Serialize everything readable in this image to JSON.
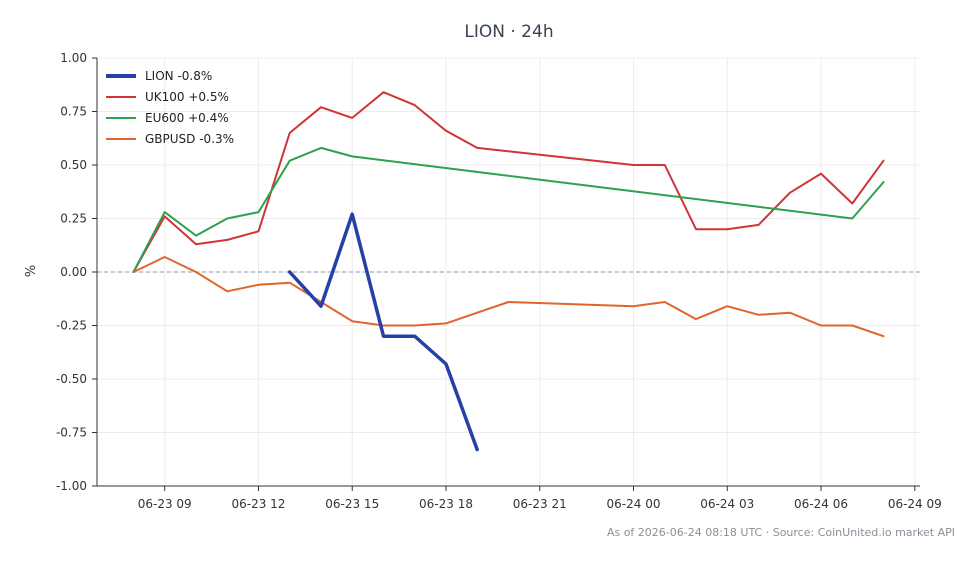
{
  "chart_data": {
    "type": "line",
    "title": "LION · 24h",
    "xlabel": "",
    "ylabel": "%",
    "ylim": [
      -1.0,
      1.0
    ],
    "xlim": [
      "2026-06-23T06:50",
      "2026-06-24T09:10"
    ],
    "yticks": [
      "1.00",
      "0.75",
      "0.50",
      "0.25",
      "0.00",
      "-0.25",
      "-0.50",
      "-0.75",
      "-1.00"
    ],
    "ytick_values": [
      1.0,
      0.75,
      0.5,
      0.25,
      0.0,
      -0.25,
      -0.5,
      -0.75,
      -1.0
    ],
    "xticks": [
      "06-23 09",
      "06-23 12",
      "06-23 15",
      "06-23 18",
      "06-23 21",
      "06-24 00",
      "06-24 03",
      "06-24 06",
      "06-24 09"
    ],
    "xtick_values": [
      "2026-06-23T09:00",
      "2026-06-23T12:00",
      "2026-06-23T15:00",
      "2026-06-23T18:00",
      "2026-06-23T21:00",
      "2026-06-24T00:00",
      "2026-06-24T03:00",
      "2026-06-24T06:00",
      "2026-06-24T09:00"
    ],
    "zero_line": true,
    "grid": true,
    "legend_position": "top-left",
    "series": [
      {
        "name": "LION -0.8%",
        "color": "#2541a8",
        "bold": true,
        "x": [
          "2026-06-23T13:00",
          "2026-06-23T14:00",
          "2026-06-23T15:00",
          "2026-06-23T16:00",
          "2026-06-23T17:00",
          "2026-06-23T18:00",
          "2026-06-23T19:00"
        ],
        "y": [
          0.0,
          -0.16,
          0.27,
          -0.3,
          -0.3,
          -0.43,
          -0.83
        ]
      },
      {
        "name": "UK100 +0.5%",
        "color": "#d03436",
        "bold": false,
        "x": [
          "2026-06-23T08:00",
          "2026-06-23T09:00",
          "2026-06-23T10:00",
          "2026-06-23T11:00",
          "2026-06-23T12:00",
          "2026-06-23T13:00",
          "2026-06-23T14:00",
          "2026-06-23T15:00",
          "2026-06-23T16:00",
          "2026-06-23T17:00",
          "2026-06-23T18:00",
          "2026-06-23T19:00",
          "2026-06-24T00:00",
          "2026-06-24T01:00",
          "2026-06-24T02:00",
          "2026-06-24T03:00",
          "2026-06-24T04:00",
          "2026-06-24T05:00",
          "2026-06-24T06:00",
          "2026-06-24T07:00",
          "2026-06-24T08:00"
        ],
        "y": [
          0.0,
          0.26,
          0.13,
          0.15,
          0.19,
          0.65,
          0.77,
          0.72,
          0.84,
          0.78,
          0.66,
          0.58,
          0.5,
          0.5,
          0.2,
          0.2,
          0.22,
          0.37,
          0.46,
          0.32,
          0.52
        ]
      },
      {
        "name": "EU600 +0.4%",
        "color": "#2ca24e",
        "bold": false,
        "x": [
          "2026-06-23T08:00",
          "2026-06-23T09:00",
          "2026-06-23T10:00",
          "2026-06-23T11:00",
          "2026-06-23T12:00",
          "2026-06-23T13:00",
          "2026-06-23T14:00",
          "2026-06-23T15:00",
          "2026-06-24T07:00",
          "2026-06-24T08:00"
        ],
        "y": [
          0.0,
          0.28,
          0.17,
          0.25,
          0.28,
          0.52,
          0.58,
          0.54,
          0.25,
          0.42
        ]
      },
      {
        "name": "GBPUSD -0.3%",
        "color": "#e0652a",
        "bold": false,
        "x": [
          "2026-06-23T08:00",
          "2026-06-23T09:00",
          "2026-06-23T10:00",
          "2026-06-23T11:00",
          "2026-06-23T12:00",
          "2026-06-23T13:00",
          "2026-06-23T14:00",
          "2026-06-23T15:00",
          "2026-06-23T16:00",
          "2026-06-23T17:00",
          "2026-06-23T18:00",
          "2026-06-23T19:00",
          "2026-06-23T20:00",
          "2026-06-24T00:00",
          "2026-06-24T01:00",
          "2026-06-24T02:00",
          "2026-06-24T03:00",
          "2026-06-24T04:00",
          "2026-06-24T05:00",
          "2026-06-24T06:00",
          "2026-06-24T07:00",
          "2026-06-24T08:00"
        ],
        "y": [
          0.0,
          0.07,
          0.0,
          -0.09,
          -0.06,
          -0.05,
          -0.14,
          -0.23,
          -0.25,
          -0.25,
          -0.24,
          -0.19,
          -0.14,
          -0.16,
          -0.14,
          -0.22,
          -0.16,
          -0.2,
          -0.19,
          -0.25,
          -0.25,
          -0.3
        ]
      }
    ]
  },
  "footer": {
    "text": "As of 2026-06-24 08:18 UTC · Source: CoinUnited.io market API"
  },
  "colors": {
    "axis": "#333333",
    "grid": "#ececec",
    "zero_line": "#8a9ab5",
    "title": "#3a4454"
  }
}
